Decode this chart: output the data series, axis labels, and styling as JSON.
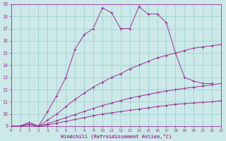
{
  "xlabel": "Windchill (Refroidissement éolien,°C)",
  "bg_color": "#cce8e8",
  "grid_color": "#99cccc",
  "line_color": "#993399",
  "xlim": [
    0,
    23
  ],
  "ylim": [
    9,
    19
  ],
  "xticks": [
    0,
    1,
    2,
    3,
    4,
    5,
    6,
    7,
    8,
    9,
    10,
    11,
    12,
    13,
    14,
    15,
    16,
    17,
    18,
    19,
    20,
    21,
    22,
    23
  ],
  "yticks": [
    9,
    10,
    11,
    12,
    13,
    14,
    15,
    16,
    17,
    18,
    19
  ],
  "curves": [
    {
      "x": [
        0,
        1,
        2,
        3,
        4,
        5,
        6,
        7,
        8,
        9,
        10,
        11,
        12,
        13,
        14,
        15,
        16,
        17,
        18,
        19,
        20,
        21,
        22
      ],
      "y": [
        9,
        9,
        9.3,
        9,
        10.2,
        11.5,
        13,
        15.3,
        16.5,
        17,
        18.7,
        18.3,
        17,
        17,
        18.8,
        18.2,
        18.2,
        17.5,
        15,
        13,
        12.7,
        12.5,
        12.5
      ]
    },
    {
      "x": [
        0,
        1,
        2,
        3,
        4,
        5,
        6,
        7,
        8,
        9,
        10,
        11,
        12,
        13,
        14,
        15,
        16,
        17,
        18,
        19,
        20,
        21,
        22,
        23
      ],
      "y": [
        9,
        9,
        9.3,
        9,
        9.5,
        10.0,
        10.6,
        11.2,
        11.7,
        12.2,
        12.6,
        13.0,
        13.3,
        13.7,
        14.0,
        14.3,
        14.6,
        14.8,
        15.0,
        15.2,
        15.4,
        15.5,
        15.6,
        15.7
      ]
    },
    {
      "x": [
        0,
        1,
        2,
        3,
        4,
        5,
        6,
        7,
        8,
        9,
        10,
        11,
        12,
        13,
        14,
        15,
        16,
        17,
        18,
        19,
        20,
        21,
        22,
        23
      ],
      "y": [
        9,
        9,
        9.15,
        9,
        9.2,
        9.45,
        9.7,
        9.95,
        10.2,
        10.45,
        10.7,
        10.9,
        11.1,
        11.3,
        11.45,
        11.6,
        11.75,
        11.88,
        12.0,
        12.1,
        12.2,
        12.3,
        12.4,
        12.5
      ]
    },
    {
      "x": [
        0,
        1,
        2,
        3,
        4,
        5,
        6,
        7,
        8,
        9,
        10,
        11,
        12,
        13,
        14,
        15,
        16,
        17,
        18,
        19,
        20,
        21,
        22,
        23
      ],
      "y": [
        9,
        9,
        9.1,
        9,
        9.1,
        9.25,
        9.4,
        9.55,
        9.7,
        9.85,
        10.0,
        10.1,
        10.2,
        10.3,
        10.4,
        10.5,
        10.6,
        10.7,
        10.8,
        10.85,
        10.9,
        10.95,
        11.0,
        11.1
      ]
    }
  ]
}
